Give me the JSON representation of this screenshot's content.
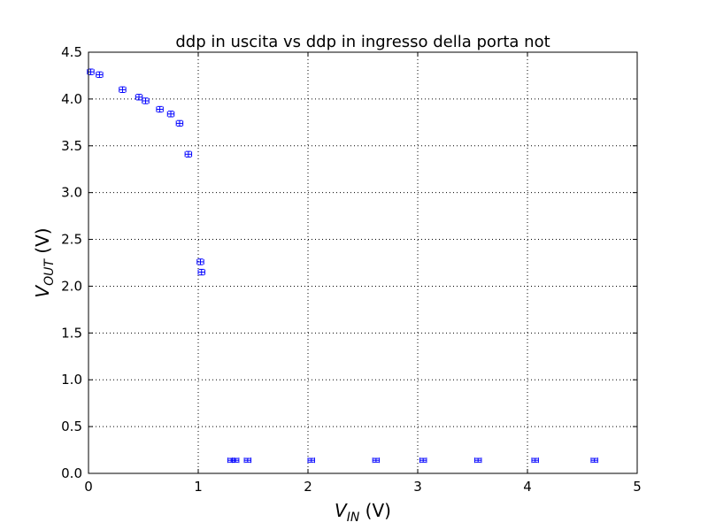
{
  "chart_data": {
    "type": "scatter",
    "title": "ddp in uscita vs ddp in ingresso della porta not",
    "xlabel": {
      "symbol": "V",
      "subscript": "IN",
      "unit": " (V)"
    },
    "ylabel": {
      "symbol": "V",
      "subscript": "OUT",
      "unit": " (V)"
    },
    "xlim": [
      0,
      5
    ],
    "ylim": [
      0,
      4.5
    ],
    "x_ticks": [
      0,
      1,
      2,
      3,
      4,
      5
    ],
    "y_ticks": [
      0.0,
      0.5,
      1.0,
      1.5,
      2.0,
      2.5,
      3.0,
      3.5,
      4.0,
      4.5
    ],
    "x_tick_labels": [
      "0",
      "1",
      "2",
      "3",
      "4",
      "5"
    ],
    "y_tick_labels": [
      "0.0",
      "0.5",
      "1.0",
      "1.5",
      "2.0",
      "2.5",
      "3.0",
      "3.5",
      "4.0",
      "4.5"
    ],
    "grid": true,
    "marker_color": "#0000ff",
    "points": [
      {
        "x": 0.02,
        "y": 4.29,
        "xerr": 0.03,
        "yerr": 0.03
      },
      {
        "x": 0.1,
        "y": 4.26,
        "xerr": 0.03,
        "yerr": 0.03
      },
      {
        "x": 0.31,
        "y": 4.1,
        "xerr": 0.03,
        "yerr": 0.03
      },
      {
        "x": 0.46,
        "y": 4.02,
        "xerr": 0.03,
        "yerr": 0.03
      },
      {
        "x": 0.52,
        "y": 3.98,
        "xerr": 0.03,
        "yerr": 0.03
      },
      {
        "x": 0.65,
        "y": 3.89,
        "xerr": 0.03,
        "yerr": 0.03
      },
      {
        "x": 0.75,
        "y": 3.84,
        "xerr": 0.03,
        "yerr": 0.03
      },
      {
        "x": 0.83,
        "y": 3.74,
        "xerr": 0.03,
        "yerr": 0.03
      },
      {
        "x": 0.91,
        "y": 3.41,
        "xerr": 0.03,
        "yerr": 0.03
      },
      {
        "x": 1.02,
        "y": 2.26,
        "xerr": 0.03,
        "yerr": 0.03
      },
      {
        "x": 1.03,
        "y": 2.15,
        "xerr": 0.03,
        "yerr": 0.03
      },
      {
        "x": 1.3,
        "y": 0.14,
        "xerr": 0.03,
        "yerr": 0.02
      },
      {
        "x": 1.34,
        "y": 0.14,
        "xerr": 0.03,
        "yerr": 0.02
      },
      {
        "x": 1.45,
        "y": 0.14,
        "xerr": 0.03,
        "yerr": 0.02
      },
      {
        "x": 2.03,
        "y": 0.14,
        "xerr": 0.03,
        "yerr": 0.02
      },
      {
        "x": 2.62,
        "y": 0.14,
        "xerr": 0.03,
        "yerr": 0.02
      },
      {
        "x": 3.05,
        "y": 0.14,
        "xerr": 0.03,
        "yerr": 0.02
      },
      {
        "x": 3.55,
        "y": 0.14,
        "xerr": 0.03,
        "yerr": 0.02
      },
      {
        "x": 4.07,
        "y": 0.14,
        "xerr": 0.03,
        "yerr": 0.02
      },
      {
        "x": 4.61,
        "y": 0.14,
        "xerr": 0.03,
        "yerr": 0.02
      }
    ]
  }
}
